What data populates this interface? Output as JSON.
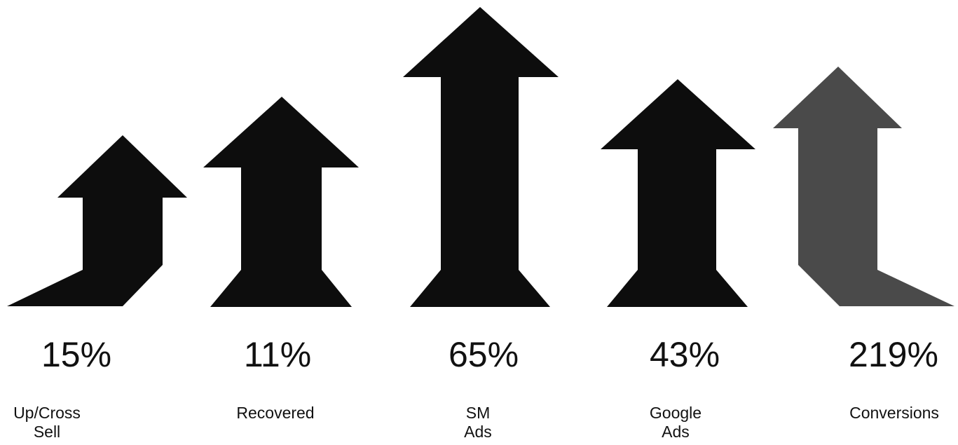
{
  "colors": {
    "arrow_dark": "#0d0d0d",
    "arrow_gray": "#4a4a4a",
    "text": "#111111"
  },
  "items": [
    {
      "value": "15%",
      "label": [
        "Up/Cross",
        "Sell"
      ],
      "arrow_shape": "bent-left",
      "arrow_color": "#0d0d0d"
    },
    {
      "value": "11%",
      "label": [
        "Recovered"
      ],
      "arrow_shape": "straight-flared",
      "arrow_color": "#0d0d0d"
    },
    {
      "value": "65%",
      "label": [
        "SM",
        "Ads"
      ],
      "arrow_shape": "straight-flared",
      "arrow_color": "#0d0d0d"
    },
    {
      "value": "43%",
      "label": [
        "Google",
        "Ads"
      ],
      "arrow_shape": "straight-flared",
      "arrow_color": "#0d0d0d"
    },
    {
      "value": "219%",
      "label": [
        "Conversions"
      ],
      "arrow_shape": "bent-right",
      "arrow_color": "#4a4a4a"
    }
  ]
}
